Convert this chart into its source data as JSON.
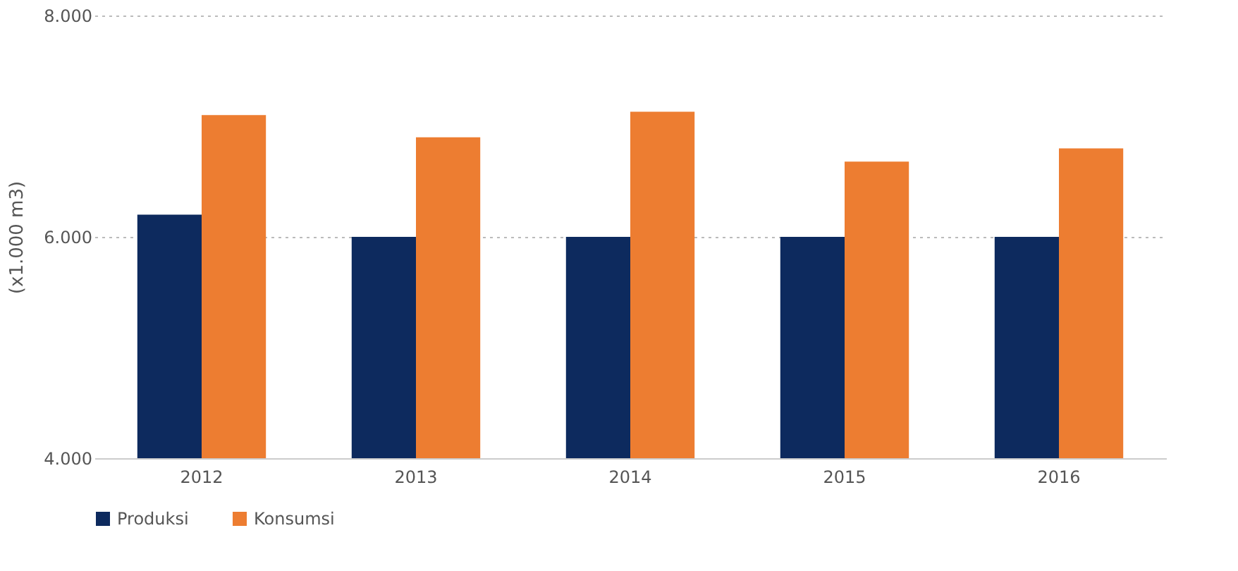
{
  "chart_data": {
    "type": "bar",
    "ylabel": "(x1.000 m3)",
    "categories": [
      "2012",
      "2013",
      "2014",
      "2015",
      "2016"
    ],
    "series": [
      {
        "name": "Produksi",
        "color": "#0d2a5e",
        "values": [
          6200,
          6000,
          6000,
          6000,
          6000
        ]
      },
      {
        "name": "Konsumsi",
        "color": "#ed7d31",
        "values": [
          7100,
          6900,
          7130,
          6680,
          6800
        ]
      }
    ],
    "ylim": [
      4000,
      8000
    ],
    "yticks": [
      {
        "value": 4000,
        "label": "4.000"
      },
      {
        "value": 6000,
        "label": "6.000"
      },
      {
        "value": 8000,
        "label": "8.000"
      }
    ],
    "grid": "y",
    "legend": "bottom"
  }
}
